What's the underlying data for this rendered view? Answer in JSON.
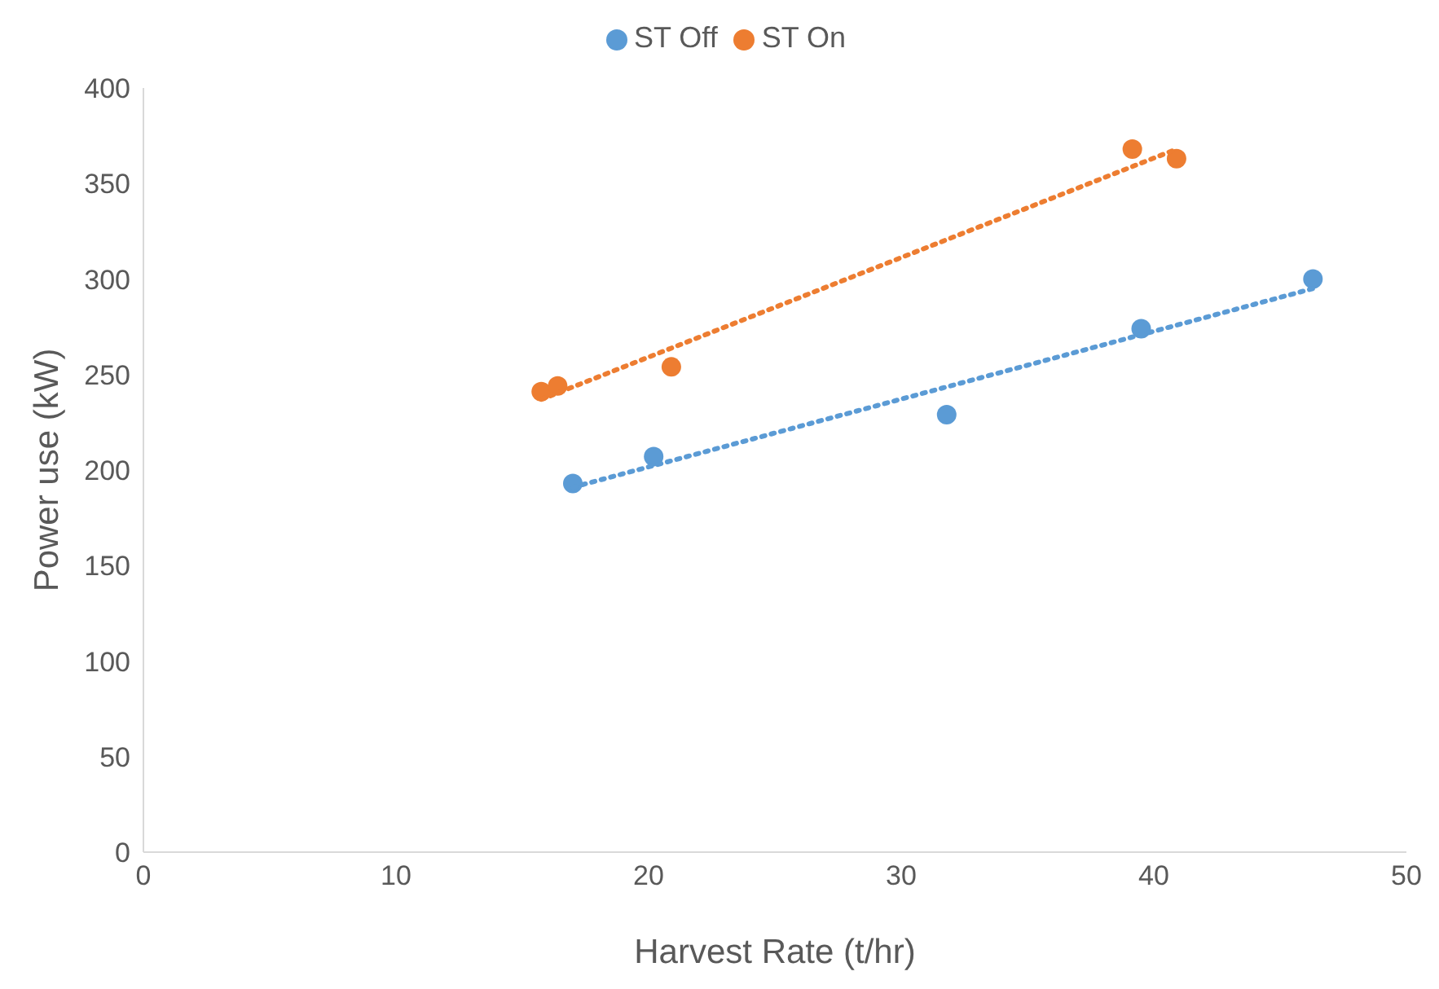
{
  "chart_data": {
    "type": "scatter",
    "xlabel": "Harvest Rate (t/hr)",
    "ylabel": "Power use (kW)",
    "xlim": [
      0,
      50
    ],
    "xticks": [
      0,
      10,
      20,
      30,
      40,
      50
    ],
    "ylim": [
      0,
      400
    ],
    "yticks": [
      0,
      50,
      100,
      150,
      200,
      250,
      300,
      350,
      400
    ],
    "grid": false,
    "legend": "top",
    "marker": "circle",
    "series": [
      {
        "name": "ST Off",
        "color": "#5b9bd5",
        "x": [
          17,
          20.2,
          31.8,
          39.5,
          46.3
        ],
        "values": [
          193,
          207,
          229,
          274,
          300
        ]
      },
      {
        "name": "ST On",
        "color": "#ed7d31",
        "x": [
          15.75,
          16.4,
          20.9,
          39.15,
          40.9
        ],
        "values": [
          241,
          244,
          254,
          368,
          363
        ]
      },
      {
        "type": "line",
        "color": "#5b9bd5",
        "line_style": "dotted",
        "marker": "none",
        "x": [
          17,
          46.3
        ],
        "values": [
          191,
          295
        ]
      },
      {
        "type": "line",
        "color": "#ed7d31",
        "line_style": "dotted",
        "marker": "none",
        "x": [
          15.75,
          40.9
        ],
        "values": [
          237,
          368
        ]
      }
    ]
  }
}
